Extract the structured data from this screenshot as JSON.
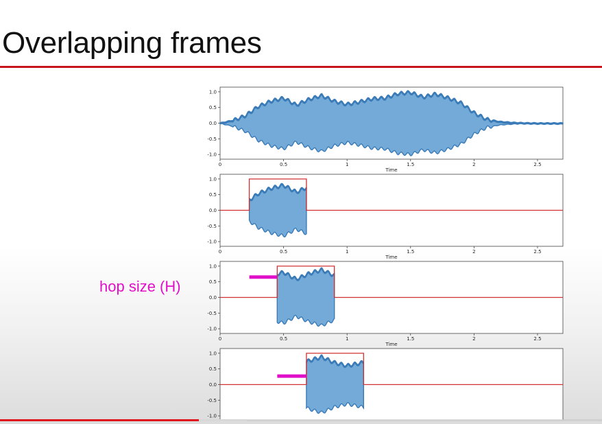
{
  "slide": {
    "title": "Overlapping frames",
    "hop_label": "hop size (H)",
    "accent_color": "#c8141c",
    "hop_color": "#e010c8"
  },
  "chart_data": [
    {
      "type": "area",
      "xlabel": "Time",
      "xlim": [
        0,
        2.7
      ],
      "ylim": [
        -1.15,
        1.15
      ],
      "xticks": [
        0,
        0.5,
        1,
        1.5,
        2,
        2.5
      ],
      "xtick_labels": [
        "0",
        "0.5",
        "1",
        "1.5",
        "2",
        "2.5"
      ],
      "yticks": [
        1.0,
        0.5,
        0.0,
        -0.5,
        -1.0
      ],
      "ytick_labels": [
        "1.0",
        "0.5",
        "0.0",
        "-0.5",
        "-1.0"
      ],
      "series": [
        {
          "kind": "waveform",
          "color": "#5b9bd0",
          "x_start": 0,
          "x_end": 2.7,
          "envelope_x": [
            0,
            0.1,
            0.2,
            0.3,
            0.4,
            0.5,
            0.6,
            0.7,
            0.8,
            0.9,
            1.0,
            1.1,
            1.2,
            1.3,
            1.4,
            1.5,
            1.6,
            1.7,
            1.8,
            1.9,
            2.0,
            2.1,
            2.2,
            2.3,
            2.4,
            2.5,
            2.6,
            2.7
          ],
          "envelope_y": [
            0.01,
            0.1,
            0.26,
            0.55,
            0.72,
            0.82,
            0.6,
            0.78,
            0.9,
            0.72,
            0.62,
            0.7,
            0.8,
            0.82,
            0.96,
            1.0,
            0.85,
            0.95,
            0.82,
            0.66,
            0.35,
            0.14,
            0.06,
            0.03,
            0.015,
            0.01,
            0.01,
            0.01
          ]
        }
      ]
    },
    {
      "type": "area",
      "xlabel": "Time",
      "xlim": [
        0,
        2.7
      ],
      "ylim": [
        -1.15,
        1.15
      ],
      "xticks": [
        0,
        0.5,
        1,
        1.5,
        2,
        2.5
      ],
      "xtick_labels": [
        "0",
        "0.5",
        "1",
        "1.5",
        "2",
        "2.5"
      ],
      "yticks": [
        1.0,
        0.5,
        0.0,
        -0.5,
        -1.0
      ],
      "ytick_labels": [
        "1.0",
        "0.5",
        "0.0",
        "-0.5",
        "-1.0"
      ],
      "series": [
        {
          "kind": "waveform",
          "color": "#5b9bd0",
          "x_start": 0.23,
          "x_end": 0.68,
          "envelope_x": [
            0,
            0.1,
            0.2,
            0.3,
            0.4,
            0.5,
            0.6,
            0.7,
            0.8,
            0.9,
            1.0,
            1.1,
            1.2,
            1.3,
            1.4,
            1.5,
            1.6,
            1.7,
            1.8,
            1.9,
            2.0,
            2.1,
            2.2,
            2.3,
            2.4,
            2.5,
            2.6,
            2.7
          ],
          "envelope_y": [
            0.01,
            0.1,
            0.26,
            0.55,
            0.72,
            0.82,
            0.6,
            0.78,
            0.9,
            0.72,
            0.62,
            0.7,
            0.8,
            0.82,
            0.96,
            1.0,
            0.85,
            0.95,
            0.82,
            0.66,
            0.35,
            0.14,
            0.06,
            0.03,
            0.015,
            0.01,
            0.01,
            0.01
          ]
        },
        {
          "kind": "window",
          "color": "#d03030",
          "x_start": 0.23,
          "x_end": 0.68,
          "height": 1.0
        }
      ]
    },
    {
      "type": "area",
      "xlabel": "Time",
      "xlim": [
        0,
        2.7
      ],
      "ylim": [
        -1.15,
        1.15
      ],
      "xticks": [
        0,
        0.5,
        1,
        1.5,
        2,
        2.5
      ],
      "xtick_labels": [
        "0",
        "0.5",
        "1",
        "1.5",
        "2",
        "2.5"
      ],
      "yticks": [
        1.0,
        0.5,
        0.0,
        -0.5,
        -1.0
      ],
      "ytick_labels": [
        "1.0",
        "0.5",
        "0.0",
        "-0.5",
        "-1.0"
      ],
      "series": [
        {
          "kind": "waveform",
          "color": "#5b9bd0",
          "x_start": 0.45,
          "x_end": 0.9,
          "envelope_x": [
            0,
            0.1,
            0.2,
            0.3,
            0.4,
            0.5,
            0.6,
            0.7,
            0.8,
            0.9,
            1.0,
            1.1,
            1.2,
            1.3,
            1.4,
            1.5,
            1.6,
            1.7,
            1.8,
            1.9,
            2.0,
            2.1,
            2.2,
            2.3,
            2.4,
            2.5,
            2.6,
            2.7
          ],
          "envelope_y": [
            0.01,
            0.1,
            0.26,
            0.55,
            0.72,
            0.82,
            0.6,
            0.78,
            0.9,
            0.72,
            0.62,
            0.7,
            0.8,
            0.82,
            0.96,
            1.0,
            0.85,
            0.95,
            0.82,
            0.66,
            0.35,
            0.14,
            0.06,
            0.03,
            0.015,
            0.01,
            0.01,
            0.01
          ]
        },
        {
          "kind": "window",
          "color": "#d03030",
          "x_start": 0.45,
          "x_end": 0.9,
          "height": 1.0
        },
        {
          "kind": "hop",
          "color": "#e010c8",
          "x_start": 0.23,
          "x_end": 0.45,
          "y": 0.65
        }
      ]
    },
    {
      "type": "area",
      "xlabel": "",
      "xlim": [
        0,
        2.7
      ],
      "ylim": [
        -1.15,
        1.15
      ],
      "xticks": [],
      "xtick_labels": [],
      "yticks": [
        1.0,
        0.5,
        0.0,
        -0.5,
        -1.0
      ],
      "ytick_labels": [
        "1.0",
        "0.5",
        "0.0",
        "-0.5",
        "-1.0"
      ],
      "series": [
        {
          "kind": "waveform",
          "color": "#5b9bd0",
          "x_start": 0.68,
          "x_end": 1.13,
          "envelope_x": [
            0,
            0.1,
            0.2,
            0.3,
            0.4,
            0.5,
            0.6,
            0.7,
            0.8,
            0.9,
            1.0,
            1.1,
            1.2,
            1.3,
            1.4,
            1.5,
            1.6,
            1.7,
            1.8,
            1.9,
            2.0,
            2.1,
            2.2,
            2.3,
            2.4,
            2.5,
            2.6,
            2.7
          ],
          "envelope_y": [
            0.01,
            0.1,
            0.26,
            0.55,
            0.72,
            0.82,
            0.6,
            0.78,
            0.9,
            0.72,
            0.62,
            0.7,
            0.8,
            0.82,
            0.96,
            1.0,
            0.85,
            0.95,
            0.82,
            0.66,
            0.35,
            0.14,
            0.06,
            0.03,
            0.015,
            0.01,
            0.01,
            0.01
          ]
        },
        {
          "kind": "window",
          "color": "#d03030",
          "x_start": 0.68,
          "x_end": 1.13,
          "height": 1.0
        },
        {
          "kind": "hop",
          "color": "#e010c8",
          "x_start": 0.45,
          "x_end": 0.68,
          "y": 0.27
        }
      ]
    }
  ]
}
